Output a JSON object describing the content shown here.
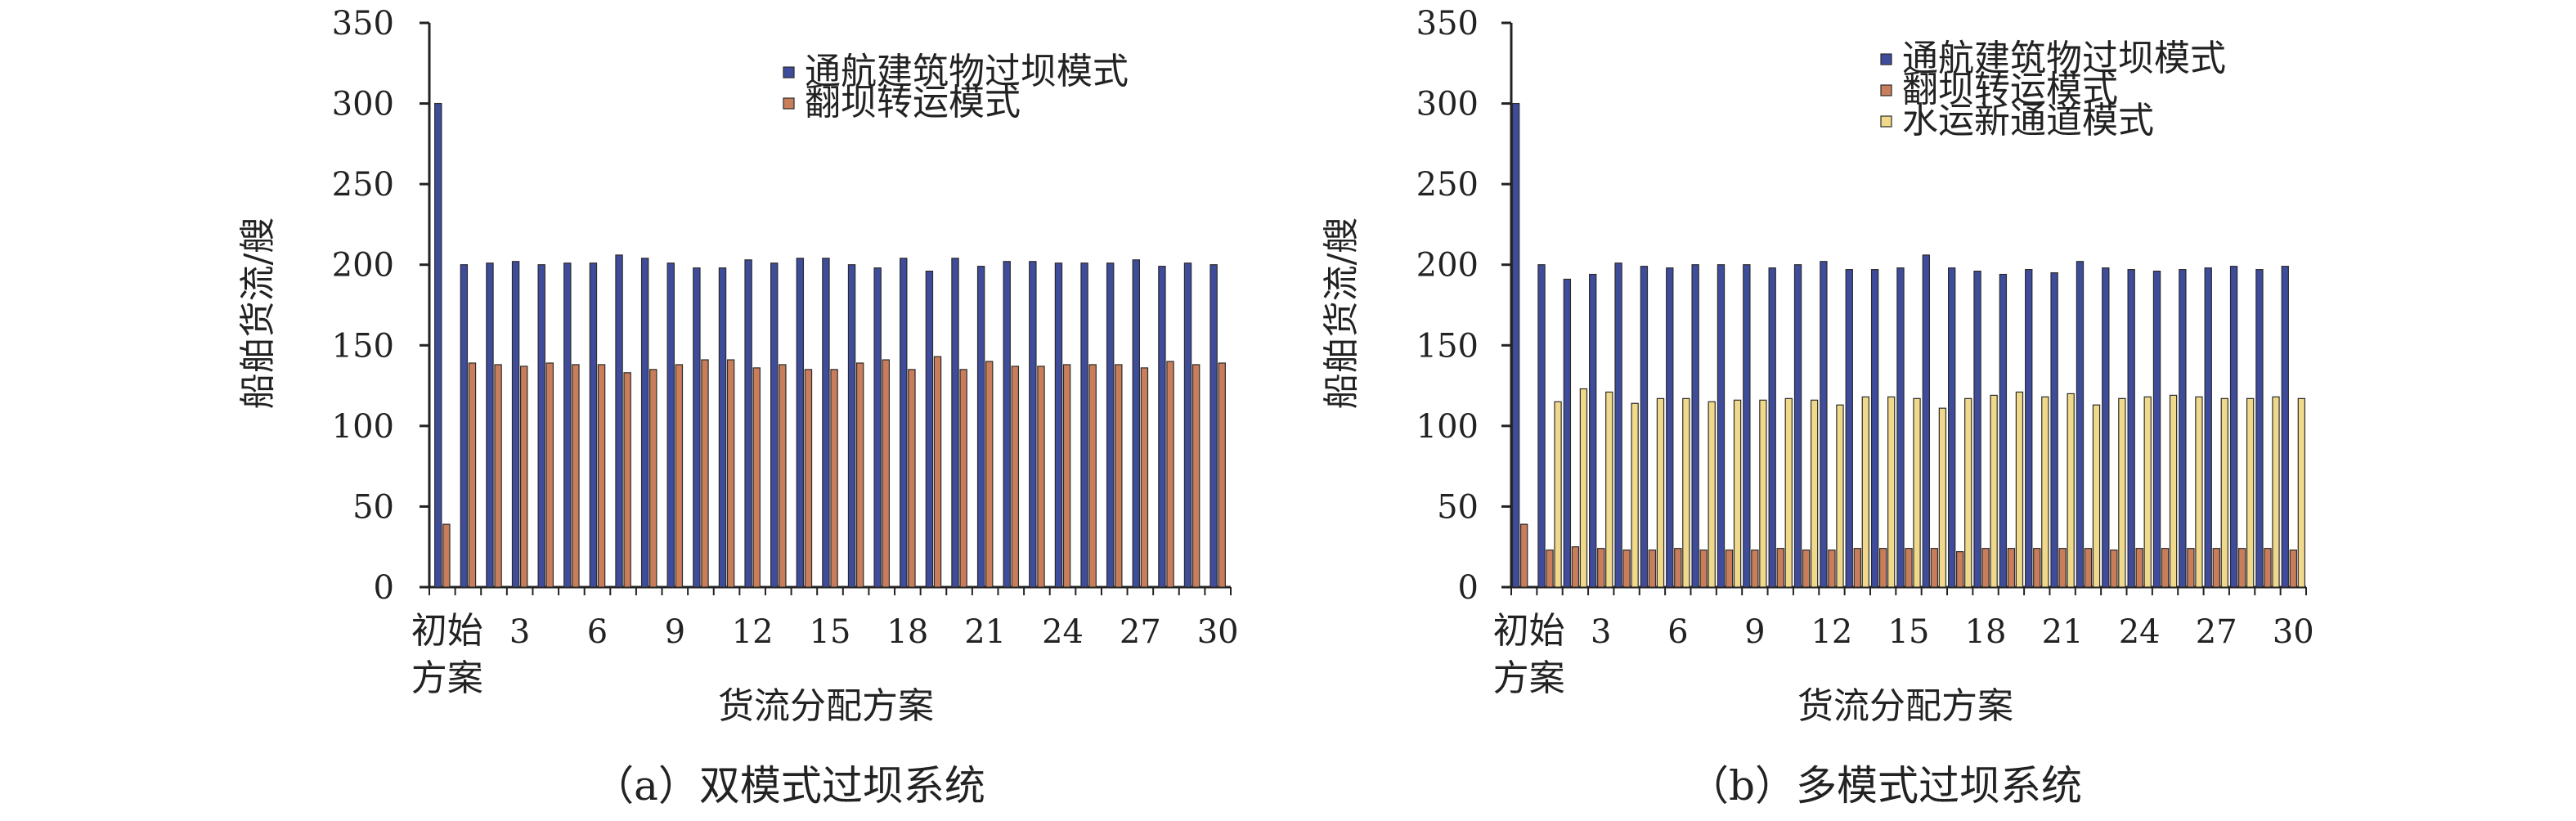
{
  "colors": {
    "series1": "#3f4c9b",
    "series2": "#c97d5b",
    "series3": "#f0d98a",
    "axis": "#222222"
  },
  "chart_data": [
    {
      "type": "bar",
      "caption": "（a）双模式过坝系统",
      "xlabel": "货流分配方案",
      "ylabel": "船舶货流/艘",
      "ylim": [
        0,
        350
      ],
      "yticks": [
        0,
        50,
        100,
        150,
        200,
        250,
        300,
        350
      ],
      "first_category_label": [
        "初始",
        "方案"
      ],
      "categories": [
        "初始方案",
        "1",
        "2",
        "3",
        "4",
        "5",
        "6",
        "7",
        "8",
        "9",
        "10",
        "11",
        "12",
        "13",
        "14",
        "15",
        "16",
        "17",
        "18",
        "19",
        "20",
        "21",
        "22",
        "23",
        "24",
        "25",
        "26",
        "27",
        "28",
        "29",
        "30"
      ],
      "xtick_labels": [
        "3",
        "6",
        "9",
        "12",
        "15",
        "18",
        "21",
        "24",
        "27",
        "30"
      ],
      "legend_position": "top-right",
      "series": [
        {
          "name": "通航建筑物过坝模式",
          "values": [
            300,
            200,
            201,
            202,
            200,
            201,
            201,
            206,
            204,
            201,
            198,
            198,
            203,
            201,
            204,
            204,
            200,
            198,
            204,
            196,
            204,
            199,
            202,
            202,
            201,
            201,
            201,
            203,
            199,
            201,
            200
          ]
        },
        {
          "name": "翻坝转运模式",
          "values": [
            39,
            139,
            138,
            137,
            139,
            138,
            138,
            133,
            135,
            138,
            141,
            141,
            136,
            138,
            135,
            135,
            139,
            141,
            135,
            143,
            135,
            140,
            137,
            137,
            138,
            138,
            138,
            136,
            140,
            138,
            139
          ]
        }
      ]
    },
    {
      "type": "bar",
      "caption": "（b）多模式过坝系统",
      "xlabel": "货流分配方案",
      "ylabel": "船舶货流/艘",
      "ylim": [
        0,
        350
      ],
      "yticks": [
        0,
        50,
        100,
        150,
        200,
        250,
        300,
        350
      ],
      "first_category_label": [
        "初始",
        "方案"
      ],
      "categories": [
        "初始方案",
        "1",
        "2",
        "3",
        "4",
        "5",
        "6",
        "7",
        "8",
        "9",
        "10",
        "11",
        "12",
        "13",
        "14",
        "15",
        "16",
        "17",
        "18",
        "19",
        "20",
        "21",
        "22",
        "23",
        "24",
        "25",
        "26",
        "27",
        "28",
        "29",
        "30"
      ],
      "xtick_labels": [
        "3",
        "6",
        "9",
        "12",
        "15",
        "18",
        "21",
        "24",
        "27",
        "30"
      ],
      "legend_position": "top-right",
      "series": [
        {
          "name": "通航建筑物过坝模式",
          "values": [
            300,
            200,
            191,
            194,
            201,
            199,
            198,
            200,
            200,
            200,
            198,
            200,
            202,
            197,
            197,
            198,
            206,
            198,
            196,
            194,
            197,
            195,
            202,
            198,
            197,
            196,
            197,
            198,
            199,
            197,
            199
          ]
        },
        {
          "name": "翻坝转运模式",
          "values": [
            39,
            23,
            25,
            24,
            23,
            23,
            24,
            23,
            23,
            23,
            24,
            23,
            23,
            24,
            24,
            24,
            24,
            22,
            24,
            24,
            24,
            24,
            24,
            23,
            24,
            24,
            24,
            24,
            24,
            24,
            23
          ]
        },
        {
          "name": "水运新通道模式",
          "values": [
            0,
            115,
            123,
            121,
            114,
            117,
            117,
            115,
            116,
            116,
            117,
            116,
            113,
            118,
            118,
            117,
            111,
            117,
            119,
            121,
            118,
            120,
            113,
            117,
            118,
            119,
            118,
            117,
            117,
            118,
            117
          ]
        }
      ]
    }
  ]
}
